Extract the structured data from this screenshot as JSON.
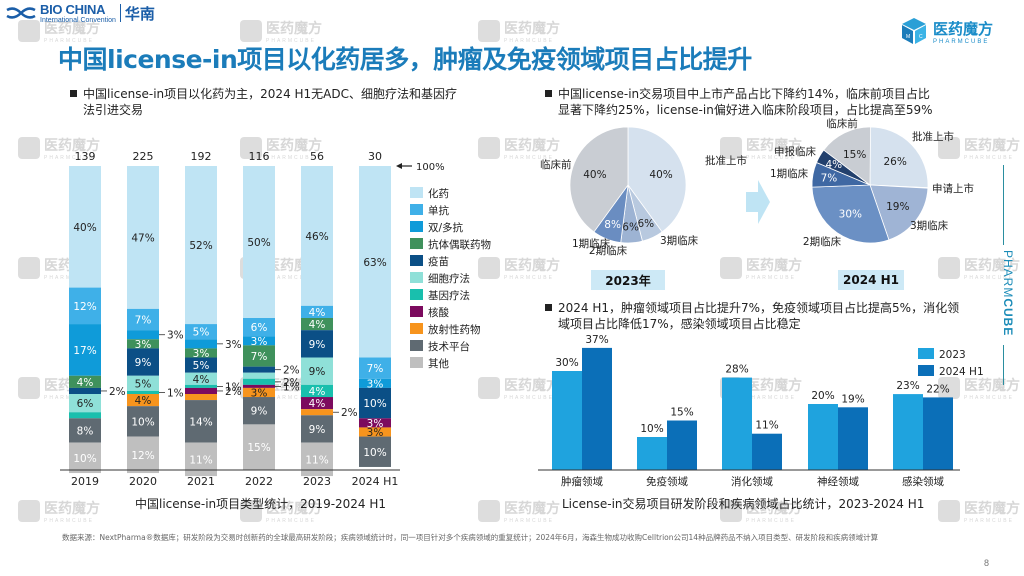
{
  "header": {
    "event_logo_main": "BIO CHINA",
    "event_logo_sub": "International Convention",
    "event_logo_city": "华南",
    "brand_logo_cn": "医药魔方",
    "brand_logo_en": "PHARMCUBE",
    "title": "中国license-in项目以化药居多，肿瘤及免疫领域项目占比提升"
  },
  "watermark": {
    "cn": "医药魔方",
    "en": "PHARMCUBE"
  },
  "left": {
    "bullet_line1": "中国license-in项目以化药为主，2024 H1无ADC、细胞疗法和基因疗",
    "bullet_line2": "法引进交易",
    "caption": "中国license-in项目类型统计，2019-2024 H1",
    "hundred_marker": "100%"
  },
  "right": {
    "bullet1_line1": "中国license-in交易项目中上市产品占比下降约14%，临床前项目占比",
    "bullet1_line2": "显著下降约25%，license-in偏好进入临床阶段项目，占比提高至59%",
    "pie_2023_label": "2023年",
    "pie_2024_label": "2024 H1",
    "bullet2_line1": "2024 H1，肿瘤领域项目占比提升7%，免疫领域项目占比提高5%，消化领",
    "bullet2_line2": "域项目占比降低17%，感染领域项目占比稳定",
    "caption": "License-in交易项目研发阶段和疾病领域占比统计，2023-2024 H1"
  },
  "footnote": "数据来源：NextPharma®数据库；研发阶段为交易时创新药的全球最高研发阶段；疾病领域统计时，同一项目针对多个疾病领域的重复统计；2024年6月，海森生物成功收购Celltrion公司14种品牌药品不纳入项目类型、研发阶段和疾病领域计算",
  "page_number": "8",
  "side_brand": {
    "part1": "PHARM",
    "part2": "CUBE"
  },
  "chart_data": [
    {
      "type": "bar",
      "stacked": true,
      "title": "中国license-in项目类型统计，2019-2024 H1",
      "categories": [
        "2019",
        "2020",
        "2021",
        "2022",
        "2023",
        "2024 H1"
      ],
      "totals": [
        139,
        225,
        192,
        116,
        56,
        30
      ],
      "ylim": [
        0,
        100
      ],
      "unit": "%",
      "legend_position": "right",
      "series": [
        {
          "name": "化药",
          "color": "#bfe4f4",
          "values": [
            40,
            47,
            52,
            50,
            46,
            63
          ]
        },
        {
          "name": "单抗",
          "color": "#3fb0e8",
          "values": [
            12,
            7,
            5,
            6,
            4,
            7
          ]
        },
        {
          "name": "双/多抗",
          "color": "#0f9bd9",
          "values": [
            17,
            3,
            3,
            3,
            0,
            3
          ]
        },
        {
          "name": "抗体偶联药物",
          "color": "#3f915c",
          "values": [
            4,
            3,
            3,
            7,
            4,
            0
          ]
        },
        {
          "name": "疫苗",
          "color": "#0b4f86",
          "values": [
            2,
            9,
            5,
            2,
            9,
            10
          ]
        },
        {
          "name": "细胞疗法",
          "color": "#8fe0d8",
          "values": [
            6,
            5,
            4,
            2,
            9,
            0
          ]
        },
        {
          "name": "基因疗法",
          "color": "#19bfad",
          "values": [
            2,
            1,
            1,
            2,
            4,
            0
          ]
        },
        {
          "name": "核酸",
          "color": "#7c0a5e",
          "values": [
            0,
            0,
            2,
            1,
            4,
            3
          ]
        },
        {
          "name": "放射性药物",
          "color": "#f7941d",
          "values": [
            0,
            4,
            2,
            3,
            2,
            3
          ]
        },
        {
          "name": "技术平台",
          "color": "#5f6a72",
          "values": [
            8,
            10,
            14,
            9,
            9,
            10
          ]
        },
        {
          "name": "其他",
          "color": "#bfbfbf",
          "values": [
            10,
            12,
            11,
            15,
            11,
            0
          ]
        }
      ],
      "outside_labels": [
        {
          "category": "2019",
          "series": "疫苗",
          "text": "2%"
        },
        {
          "category": "2020",
          "series": "双/多抗",
          "text": "3%"
        },
        {
          "category": "2020",
          "series": "基因疗法",
          "text": "1%"
        },
        {
          "category": "2021",
          "series": "双/多抗",
          "text": "3%"
        },
        {
          "category": "2021",
          "series": "基因疗法",
          "text": "1%"
        },
        {
          "category": "2021",
          "series": "核酸",
          "text": "2%"
        },
        {
          "category": "2022",
          "series": "疫苗",
          "text": "2%"
        },
        {
          "category": "2022",
          "series": "基因疗法",
          "text": "2%"
        },
        {
          "category": "2022",
          "series": "核酸",
          "text": "1%"
        },
        {
          "category": "2023",
          "series": "放射性药物",
          "text": "2%"
        }
      ]
    },
    {
      "type": "pie",
      "title": "2023年",
      "slices": [
        {
          "label": "批准上市",
          "value": 40,
          "color": "#d5e1ee"
        },
        {
          "label": "3期临床",
          "value": 6,
          "color": "#b8c9df"
        },
        {
          "label": "2期临床",
          "value": 6,
          "color": "#9db3d3"
        },
        {
          "label": "1期临床",
          "value": 8,
          "color": "#6a8dc1"
        },
        {
          "label": "临床前",
          "value": 40,
          "color": "#c9cdd3"
        }
      ]
    },
    {
      "type": "pie",
      "title": "2024 H1",
      "slices": [
        {
          "label": "批准上市",
          "value": 26,
          "color": "#d5e1ee"
        },
        {
          "label": "申请上市",
          "value": 0,
          "color": "#bccbe0"
        },
        {
          "label": "3期临床",
          "value": 19,
          "color": "#9fb4d5"
        },
        {
          "label": "2期临床",
          "value": 30,
          "color": "#6b90c4"
        },
        {
          "label": "1期临床",
          "value": 7,
          "color": "#3f68a3"
        },
        {
          "label": "申报临床",
          "value": 4,
          "color": "#22406d"
        },
        {
          "label": "临床前",
          "value": 15,
          "color": "#c9cdd3"
        }
      ]
    },
    {
      "type": "bar",
      "title": "License-in交易项目研发阶段和疾病领域占比统计，2023-2024 H1",
      "categories": [
        "肿瘤领域",
        "免疫领域",
        "消化领域",
        "神经领域",
        "感染领域"
      ],
      "unit": "%",
      "ylim": [
        0,
        40
      ],
      "legend_position": "top-right",
      "series": [
        {
          "name": "2023",
          "color": "#1fa3de",
          "values": [
            30,
            10,
            28,
            20,
            23
          ]
        },
        {
          "name": "2024 H1",
          "color": "#0b6fb8",
          "values": [
            37,
            15,
            11,
            19,
            22
          ]
        }
      ]
    }
  ]
}
